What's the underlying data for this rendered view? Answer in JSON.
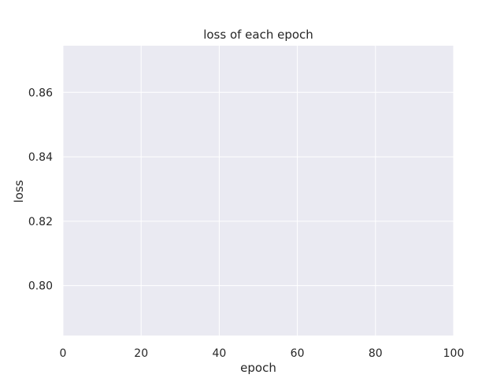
{
  "chart_data": {
    "type": "line",
    "title": "loss of each epoch",
    "xlabel": "epoch",
    "ylabel": "loss",
    "xlim": [
      0,
      100
    ],
    "ylim": [
      0.7845,
      0.8745
    ],
    "x_ticks": [
      0,
      20,
      40,
      60,
      80,
      100
    ],
    "x_tick_labels": [
      "0",
      "20",
      "40",
      "60",
      "80",
      "100"
    ],
    "y_ticks": [
      0.8,
      0.82,
      0.84,
      0.86
    ],
    "y_tick_labels": [
      "0.80",
      "0.82",
      "0.84",
      "0.86"
    ],
    "grid": true,
    "series": [],
    "colors": {
      "plot_background": "#eaeaf2",
      "grid": "#ffffff",
      "text": "#262626"
    }
  }
}
